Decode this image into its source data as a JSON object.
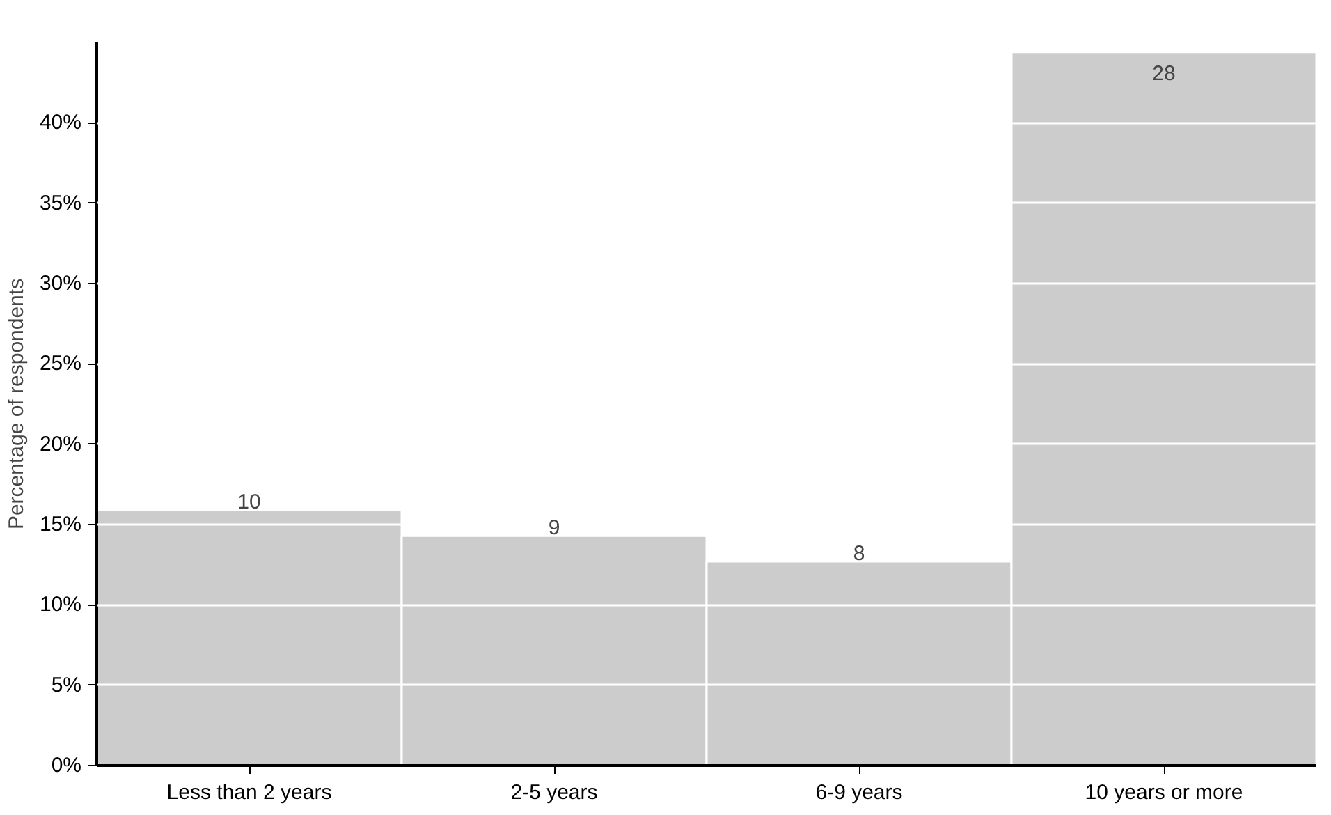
{
  "chart_data": {
    "type": "bar",
    "ylabel": "Percentage of respondents",
    "categories": [
      "Less than 2 years",
      "2-5 years",
      "6-9 years",
      "10 years or more"
    ],
    "values": [
      15.9,
      14.3,
      12.7,
      44.4
    ],
    "annotations": [
      {
        "text": "10",
        "x": "Less than 2 years",
        "y": 15.9
      },
      {
        "text": "9",
        "x": "2-5 years",
        "y": 14.3
      },
      {
        "text": "8",
        "x": "6-9 years",
        "y": 12.7
      },
      {
        "text": "28",
        "x": "10 years or more",
        "y": 44.4
      }
    ],
    "color": "#cccccc",
    "ylim": [
      0,
      45
    ],
    "yticks": [
      {
        "value": 0,
        "label": "0%"
      },
      {
        "value": 5,
        "label": "5%"
      },
      {
        "value": 10,
        "label": "10%"
      },
      {
        "value": 15,
        "label": "15%"
      },
      {
        "value": 20,
        "label": "20%"
      },
      {
        "value": 25,
        "label": "25%"
      },
      {
        "value": 30,
        "label": "30%"
      },
      {
        "value": 35,
        "label": "35%"
      },
      {
        "value": 40,
        "label": "40%"
      }
    ],
    "grid": "y"
  }
}
